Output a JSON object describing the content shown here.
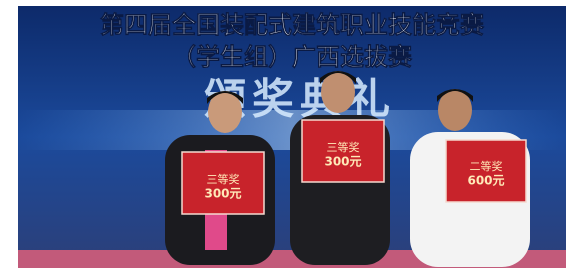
{
  "banner": {
    "line1": "第四届全国装配式建筑职业技能竞赛",
    "line2": "（学生组）广西选拔赛",
    "ceremony": "颁奖典礼"
  },
  "boards": [
    {
      "prize": "三等奖",
      "amount": "300元"
    },
    {
      "prize": "三等奖",
      "amount": "300元"
    },
    {
      "prize": "二等奖",
      "amount": "600元"
    }
  ]
}
